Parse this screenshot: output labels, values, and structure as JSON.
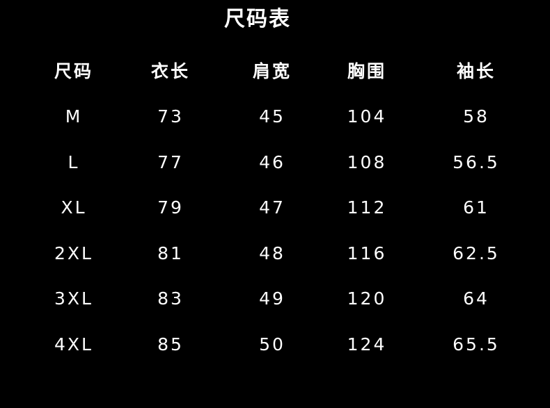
{
  "title": "尺码表",
  "headers": [
    "尺码",
    "衣长",
    "肩宽",
    "胸围",
    "袖长"
  ],
  "rows": [
    [
      "M",
      "73",
      "45",
      "104",
      "58"
    ],
    [
      "L",
      "77",
      "46",
      "108",
      "56.5"
    ],
    [
      "XL",
      "79",
      "47",
      "112",
      "61"
    ],
    [
      "2XL",
      "81",
      "48",
      "116",
      "62.5"
    ],
    [
      "3XL",
      "83",
      "49",
      "120",
      "64"
    ],
    [
      "4XL",
      "85",
      "50",
      "124",
      "65.5"
    ]
  ]
}
